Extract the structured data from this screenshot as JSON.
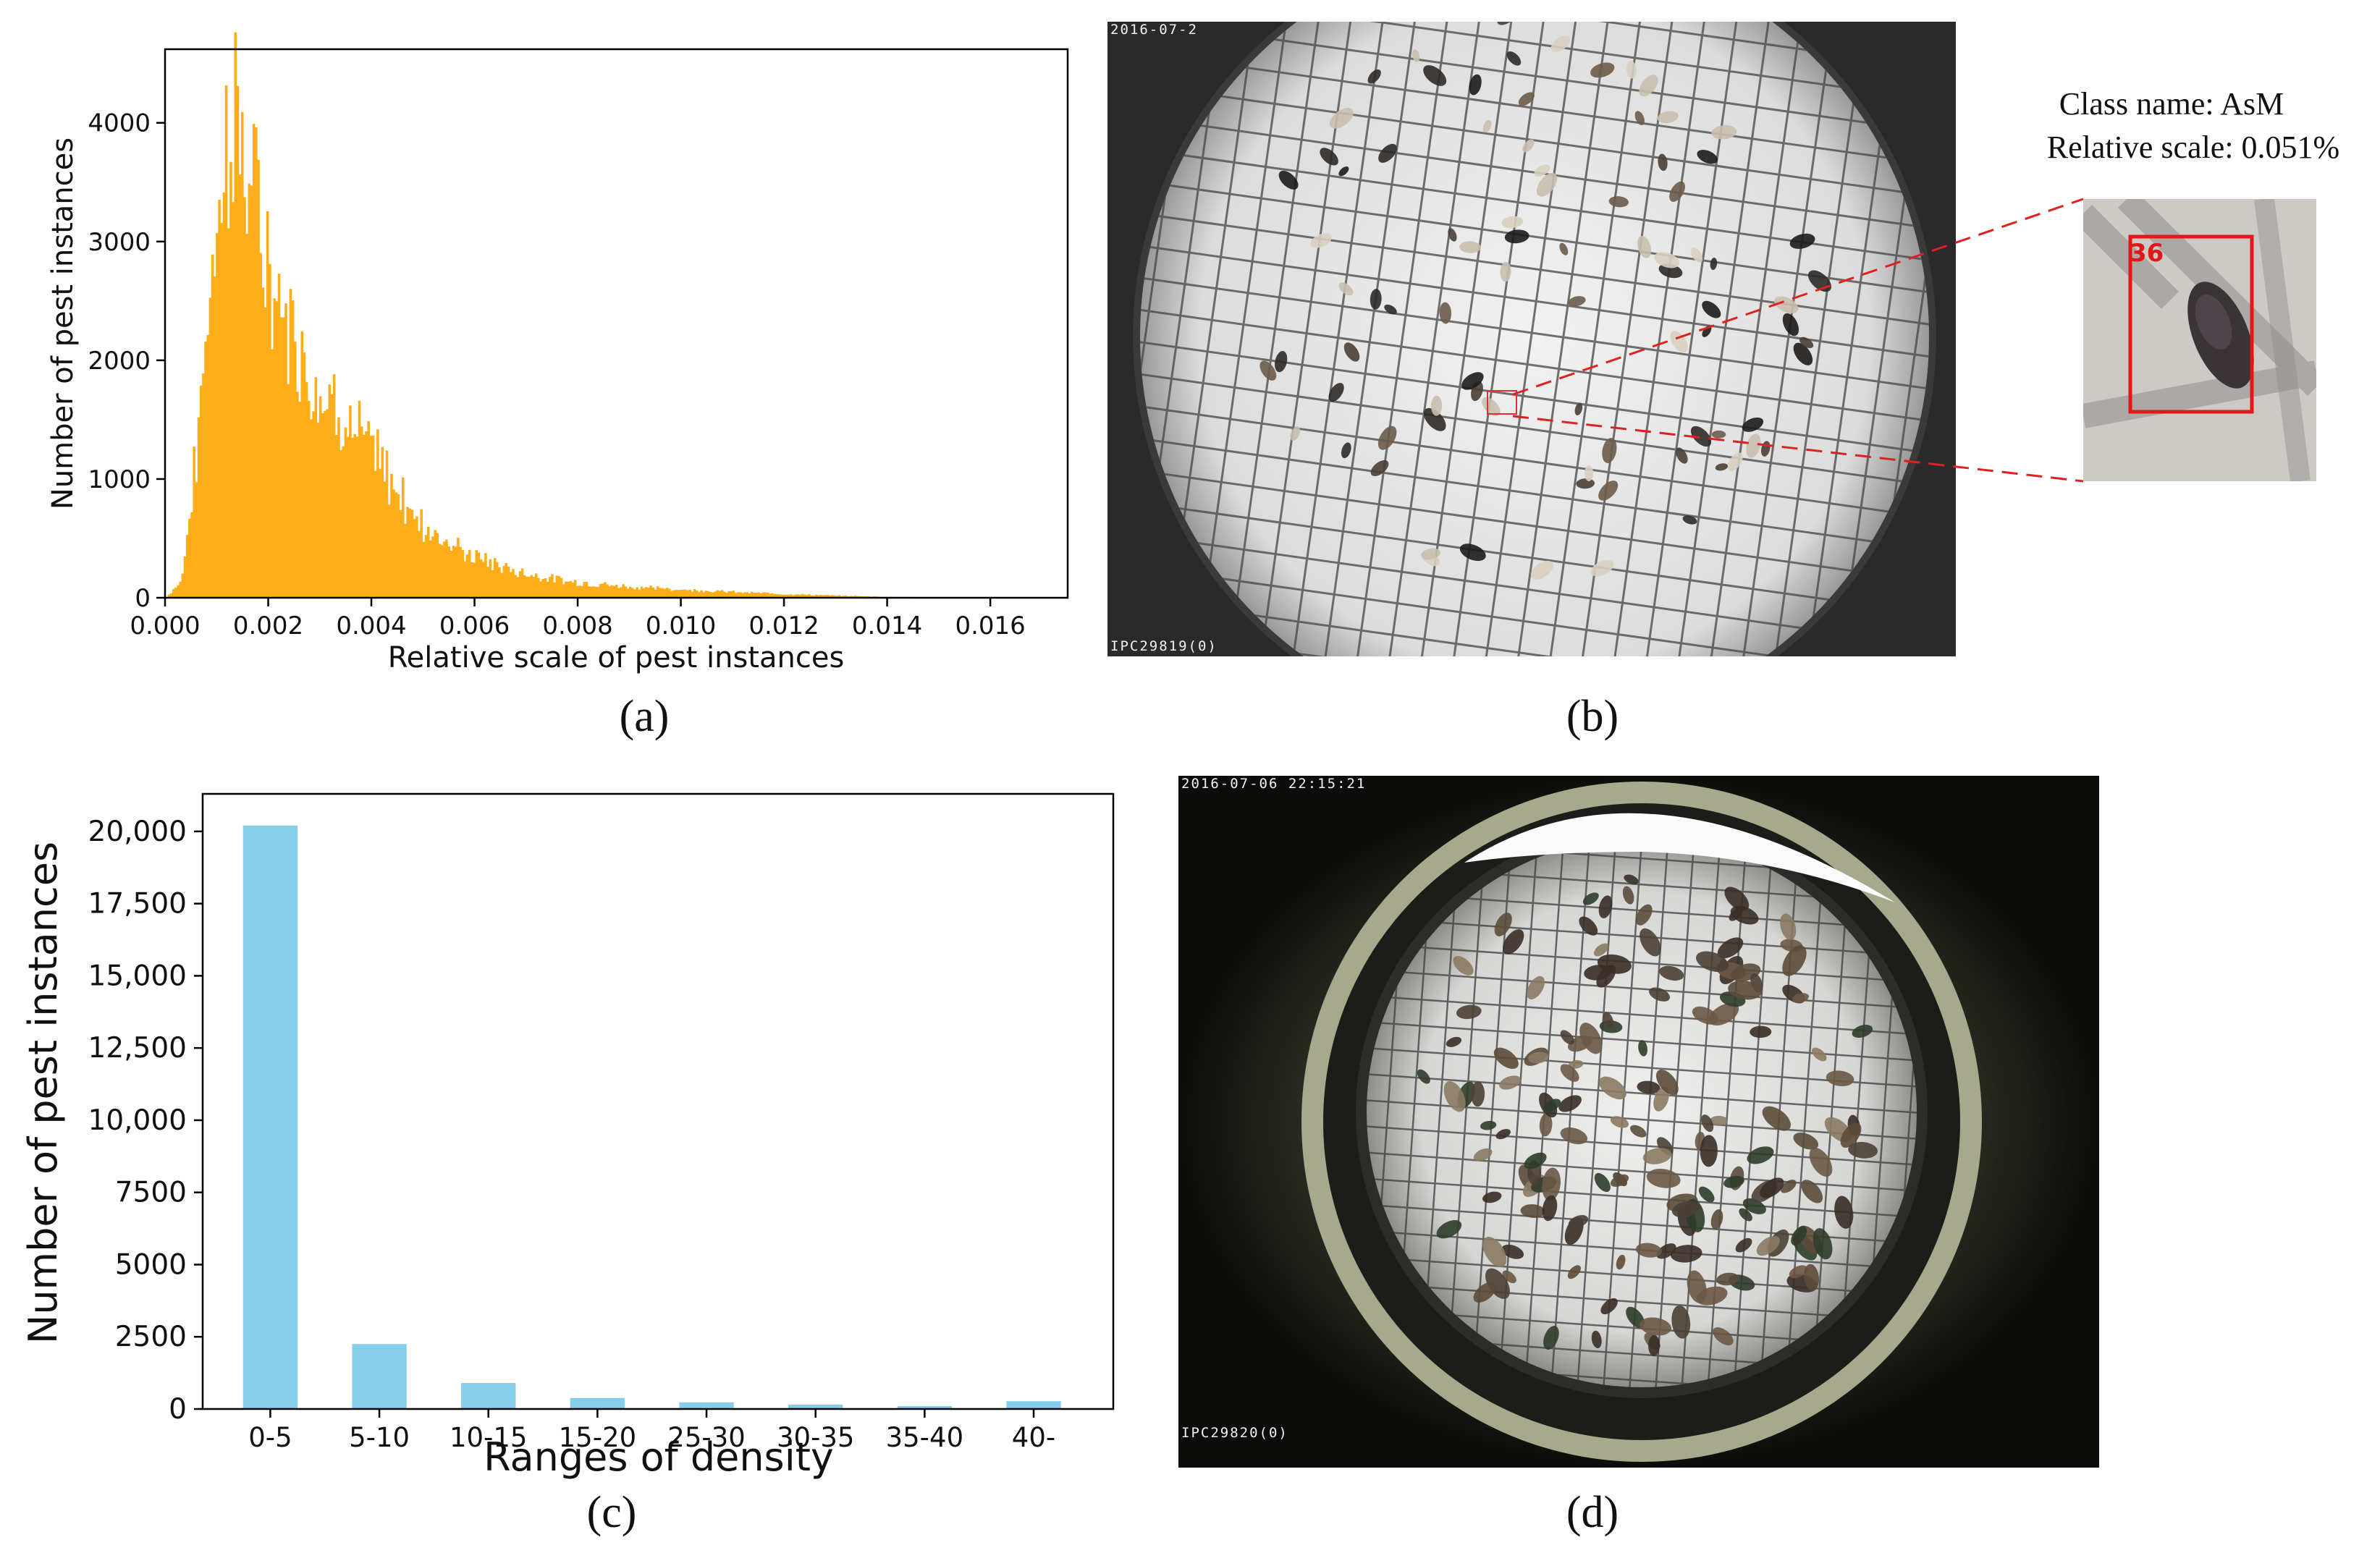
{
  "chart_data": [
    {
      "id": "a",
      "type": "bar",
      "style": "histogram",
      "xlabel": "Relative scale of pest instances",
      "ylabel": "Number of pest instances",
      "xlim": [
        0.0,
        0.0175
      ],
      "ylim": [
        0,
        4620
      ],
      "xticks": [
        "0.000",
        "0.002",
        "0.004",
        "0.006",
        "0.008",
        "0.010",
        "0.012",
        "0.014",
        "0.016"
      ],
      "yticks": [
        "0",
        "1000",
        "2000",
        "3000",
        "4000"
      ],
      "color": "#FBAE1A",
      "key_points": [
        {
          "x": 0.0,
          "y": 0
        },
        {
          "x": 0.0003,
          "y": 150
        },
        {
          "x": 0.0006,
          "y": 1300
        },
        {
          "x": 0.0009,
          "y": 3050
        },
        {
          "x": 0.0012,
          "y": 3900
        },
        {
          "x": 0.0013,
          "y": 4380
        },
        {
          "x": 0.0016,
          "y": 3600
        },
        {
          "x": 0.002,
          "y": 2850
        },
        {
          "x": 0.0025,
          "y": 2200
        },
        {
          "x": 0.003,
          "y": 1800
        },
        {
          "x": 0.0035,
          "y": 1550
        },
        {
          "x": 0.004,
          "y": 1250
        },
        {
          "x": 0.0045,
          "y": 900
        },
        {
          "x": 0.005,
          "y": 600
        },
        {
          "x": 0.006,
          "y": 340
        },
        {
          "x": 0.007,
          "y": 200
        },
        {
          "x": 0.008,
          "y": 130
        },
        {
          "x": 0.009,
          "y": 95
        },
        {
          "x": 0.01,
          "y": 70
        },
        {
          "x": 0.011,
          "y": 50
        },
        {
          "x": 0.012,
          "y": 32
        },
        {
          "x": 0.013,
          "y": 18
        },
        {
          "x": 0.014,
          "y": 8
        },
        {
          "x": 0.015,
          "y": 3
        },
        {
          "x": 0.016,
          "y": 1
        },
        {
          "x": 0.017,
          "y": 0
        }
      ]
    },
    {
      "id": "c",
      "type": "bar",
      "xlabel": "Ranges of density",
      "ylabel": "Number of pest instances",
      "categories": [
        "0-5",
        "5-10",
        "10-15",
        "15-20",
        "25-30",
        "30-35",
        "35-40",
        "40-"
      ],
      "values": [
        20200,
        2250,
        900,
        380,
        230,
        150,
        100,
        270
      ],
      "ylim": [
        0,
        21300
      ],
      "yticks": [
        "0",
        "2500",
        "5000",
        "7500",
        "10,000",
        "12,500",
        "15,000",
        "17,500",
        "20,000"
      ],
      "ytick_values": [
        0,
        2500,
        5000,
        7500,
        10000,
        12500,
        15000,
        17500,
        20000
      ],
      "color": "#87CEEB"
    }
  ],
  "captions": {
    "a": "(a)",
    "b": "(b)",
    "c": "(c)",
    "d": "(d)"
  },
  "photo_b": {
    "timestamp": "2016-07-2",
    "camera": "IPC29819(0)",
    "zoom": {
      "class_line": "Class name: AsM",
      "scale_line": "Relative scale: 0.051%",
      "box_label": "36"
    }
  },
  "photo_d": {
    "timestamp": "2016-07-06 22:15:21",
    "camera": "IPC29820(0)"
  }
}
